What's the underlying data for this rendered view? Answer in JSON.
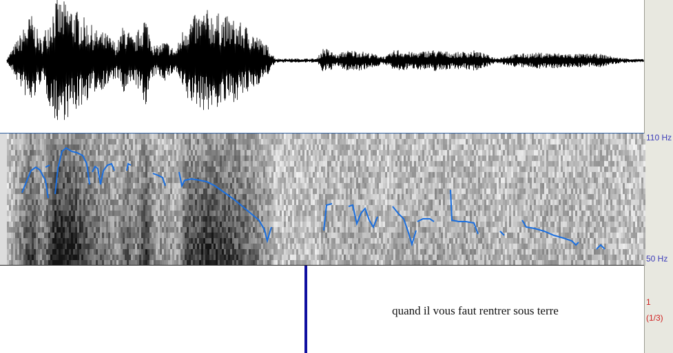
{
  "pitch_axis": {
    "top_label": "110 Hz",
    "bottom_label": "50 Hz"
  },
  "tier": {
    "number": "1",
    "count": "(1/3)",
    "text": "quand il vous faut rentrer sous terre"
  }
}
